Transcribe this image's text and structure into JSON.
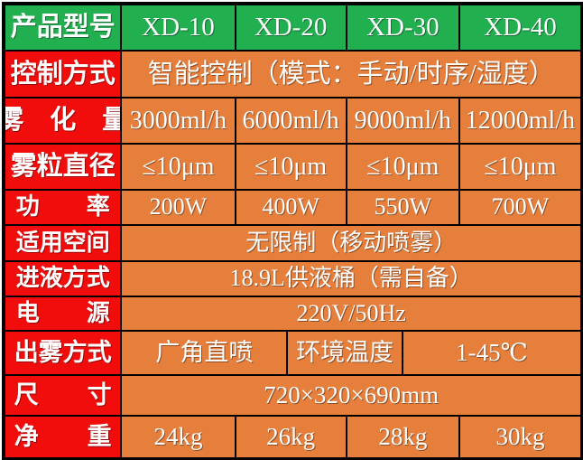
{
  "header": {
    "label": "产品型号",
    "models": [
      "XD-10",
      "XD-20",
      "XD-30",
      "XD-40"
    ]
  },
  "rows": {
    "control": {
      "label": "控制方式",
      "value": "智能控制（模式：手动/时序/湿度）"
    },
    "atomization": {
      "label": "雾　化　量",
      "values": [
        "3000ml/h",
        "6000ml/h",
        "9000ml/h",
        "12000ml/h"
      ]
    },
    "particle": {
      "label": "雾粒直径",
      "values": [
        "≤10μm",
        "≤10μm",
        "≤10μm",
        "≤10μm"
      ]
    },
    "power": {
      "label": "功　　率",
      "values": [
        "200W",
        "400W",
        "550W",
        "700W"
      ]
    },
    "space": {
      "label": "适用空间",
      "value": "无限制（移动喷雾）"
    },
    "liquid": {
      "label": "进液方式",
      "value": "18.9L供液桶（需自备）"
    },
    "supply": {
      "label": "电　　源",
      "value": "220V/50Hz"
    },
    "mist": {
      "label": "出雾方式",
      "cells": [
        "广角直喷",
        "环境温度",
        "1-45℃"
      ]
    },
    "size": {
      "label": "尺　　寸",
      "value": "720×320×690mm"
    },
    "weight": {
      "label": "净　　重",
      "values": [
        "24kg",
        "26kg",
        "28kg",
        "30kg"
      ]
    }
  },
  "colors": {
    "header_green": "#22AF50",
    "label_red": "#F20D0D",
    "cell_orange": "#E67E3C",
    "border_black": "#000000",
    "text_white": "#FFFFFF"
  }
}
